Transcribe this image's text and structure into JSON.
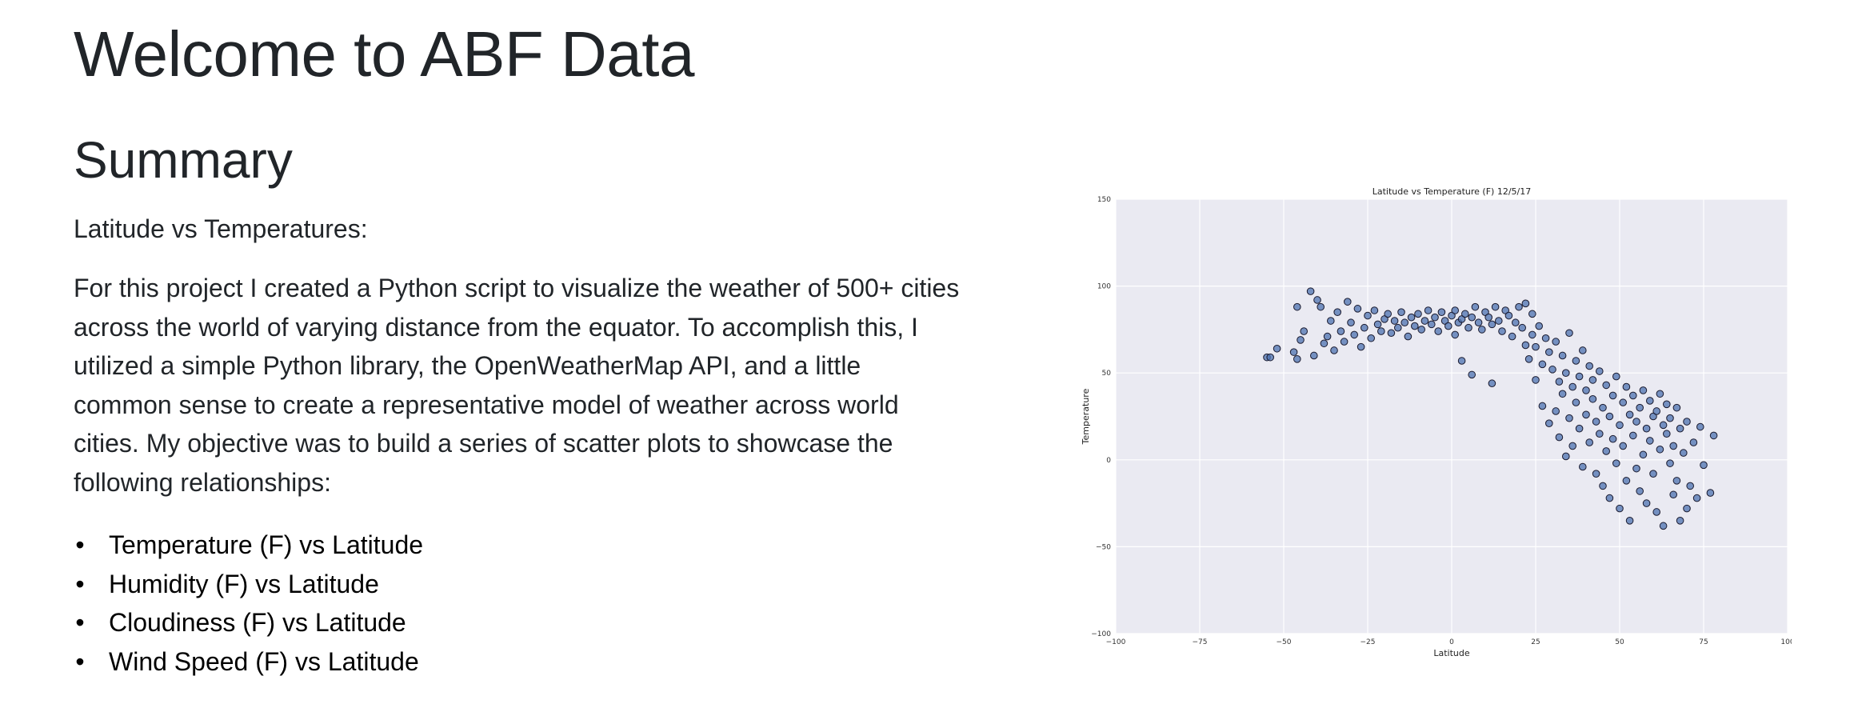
{
  "header": {
    "title": "Welcome to ABF Data"
  },
  "summary": {
    "heading": "Summary",
    "subheading": "Latitude vs Temperatures:",
    "paragraph": "For this project I created a Python script to visualize the weather of 500+ cities across the world of varying distance from the equator. To accomplish this, I utilized a simple Python library, the OpenWeatherMap API, and a little common sense to create a representative model of weather across world cities. My objective was to build a series of scatter plots to showcase the following relationships:",
    "bullets": [
      "Temperature (F) vs Latitude",
      "Humidity (F) vs Latitude",
      "Cloudiness (F) vs Latitude",
      "Wind Speed (F) vs Latitude"
    ]
  },
  "colors": {
    "text": "#212529",
    "plot_background": "#eaeaf2",
    "grid": "#ffffff",
    "marker_fill": "#4c72b0",
    "marker_edge": "#1a1a2e"
  },
  "chart_data": {
    "type": "scatter",
    "title": "Latitude vs Temperature (F) 12/5/17",
    "xlabel": "Latitude",
    "ylabel": "Temperature",
    "xlim": [
      -100,
      100
    ],
    "ylim": [
      -100,
      150
    ],
    "xticks": [
      -100,
      -75,
      -50,
      -25,
      0,
      25,
      50,
      75,
      100
    ],
    "yticks": [
      -100,
      -50,
      0,
      50,
      100,
      150
    ],
    "grid": true,
    "points": [
      [
        -55,
        59
      ],
      [
        -54,
        59
      ],
      [
        -52,
        64
      ],
      [
        -47,
        62
      ],
      [
        -46,
        58
      ],
      [
        -46,
        88
      ],
      [
        -45,
        69
      ],
      [
        -44,
        74
      ],
      [
        -42,
        97
      ],
      [
        -41,
        60
      ],
      [
        -40,
        92
      ],
      [
        -39,
        88
      ],
      [
        -38,
        67
      ],
      [
        -37,
        71
      ],
      [
        -36,
        80
      ],
      [
        -35,
        63
      ],
      [
        -34,
        85
      ],
      [
        -33,
        74
      ],
      [
        -32,
        68
      ],
      [
        -31,
        91
      ],
      [
        -30,
        79
      ],
      [
        -29,
        72
      ],
      [
        -28,
        87
      ],
      [
        -27,
        65
      ],
      [
        -26,
        76
      ],
      [
        -25,
        83
      ],
      [
        -24,
        70
      ],
      [
        -23,
        86
      ],
      [
        -22,
        78
      ],
      [
        -21,
        74
      ],
      [
        -20,
        81
      ],
      [
        -19,
        84
      ],
      [
        -18,
        73
      ],
      [
        -17,
        80
      ],
      [
        -16,
        76
      ],
      [
        -15,
        85
      ],
      [
        -14,
        79
      ],
      [
        -13,
        71
      ],
      [
        -12,
        82
      ],
      [
        -11,
        77
      ],
      [
        -10,
        84
      ],
      [
        -9,
        75
      ],
      [
        -8,
        80
      ],
      [
        -7,
        86
      ],
      [
        -6,
        78
      ],
      [
        -5,
        82
      ],
      [
        -4,
        74
      ],
      [
        -3,
        85
      ],
      [
        -2,
        80
      ],
      [
        -1,
        77
      ],
      [
        0,
        83
      ],
      [
        1,
        72
      ],
      [
        1,
        86
      ],
      [
        2,
        79
      ],
      [
        3,
        81
      ],
      [
        3,
        57
      ],
      [
        4,
        84
      ],
      [
        5,
        76
      ],
      [
        6,
        49
      ],
      [
        6,
        82
      ],
      [
        7,
        88
      ],
      [
        8,
        79
      ],
      [
        9,
        75
      ],
      [
        10,
        85
      ],
      [
        11,
        82
      ],
      [
        12,
        44
      ],
      [
        12,
        78
      ],
      [
        13,
        88
      ],
      [
        14,
        80
      ],
      [
        15,
        74
      ],
      [
        16,
        86
      ],
      [
        17,
        83
      ],
      [
        18,
        71
      ],
      [
        19,
        79
      ],
      [
        20,
        88
      ],
      [
        21,
        76
      ],
      [
        22,
        66
      ],
      [
        22,
        90
      ],
      [
        23,
        58
      ],
      [
        24,
        72
      ],
      [
        24,
        84
      ],
      [
        25,
        46
      ],
      [
        25,
        65
      ],
      [
        26,
        77
      ],
      [
        27,
        55
      ],
      [
        27,
        31
      ],
      [
        28,
        70
      ],
      [
        29,
        62
      ],
      [
        29,
        21
      ],
      [
        30,
        52
      ],
      [
        31,
        68
      ],
      [
        31,
        28
      ],
      [
        32,
        45
      ],
      [
        32,
        13
      ],
      [
        33,
        60
      ],
      [
        33,
        38
      ],
      [
        34,
        50
      ],
      [
        34,
        2
      ],
      [
        35,
        73
      ],
      [
        35,
        24
      ],
      [
        36,
        42
      ],
      [
        36,
        8
      ],
      [
        37,
        57
      ],
      [
        37,
        33
      ],
      [
        38,
        48
      ],
      [
        38,
        18
      ],
      [
        39,
        63
      ],
      [
        39,
        -4
      ],
      [
        40,
        40
      ],
      [
        40,
        26
      ],
      [
        41,
        54
      ],
      [
        41,
        10
      ],
      [
        42,
        35
      ],
      [
        42,
        46
      ],
      [
        43,
        22
      ],
      [
        43,
        -8
      ],
      [
        44,
        51
      ],
      [
        44,
        15
      ],
      [
        45,
        30
      ],
      [
        45,
        -15
      ],
      [
        46,
        43
      ],
      [
        46,
        5
      ],
      [
        47,
        25
      ],
      [
        47,
        -22
      ],
      [
        48,
        37
      ],
      [
        48,
        12
      ],
      [
        49,
        48
      ],
      [
        49,
        -2
      ],
      [
        50,
        20
      ],
      [
        50,
        -28
      ],
      [
        51,
        33
      ],
      [
        51,
        8
      ],
      [
        52,
        42
      ],
      [
        52,
        -12
      ],
      [
        53,
        26
      ],
      [
        53,
        -35
      ],
      [
        54,
        14
      ],
      [
        54,
        37
      ],
      [
        55,
        -5
      ],
      [
        55,
        22
      ],
      [
        56,
        30
      ],
      [
        56,
        -18
      ],
      [
        57,
        40
      ],
      [
        57,
        3
      ],
      [
        58,
        18
      ],
      [
        58,
        -25
      ],
      [
        59,
        34
      ],
      [
        59,
        11
      ],
      [
        60,
        25
      ],
      [
        60,
        -8
      ],
      [
        61,
        28
      ],
      [
        61,
        -30
      ],
      [
        62,
        38
      ],
      [
        62,
        6
      ],
      [
        63,
        20
      ],
      [
        63,
        -38
      ],
      [
        64,
        15
      ],
      [
        64,
        32
      ],
      [
        65,
        -2
      ],
      [
        65,
        24
      ],
      [
        66,
        8
      ],
      [
        66,
        -20
      ],
      [
        67,
        30
      ],
      [
        67,
        -12
      ],
      [
        68,
        18
      ],
      [
        68,
        -35
      ],
      [
        69,
        4
      ],
      [
        70,
        -28
      ],
      [
        70,
        22
      ],
      [
        71,
        -15
      ],
      [
        72,
        10
      ],
      [
        73,
        -22
      ],
      [
        74,
        19
      ],
      [
        75,
        -3
      ],
      [
        77,
        -19
      ],
      [
        78,
        14
      ]
    ]
  }
}
